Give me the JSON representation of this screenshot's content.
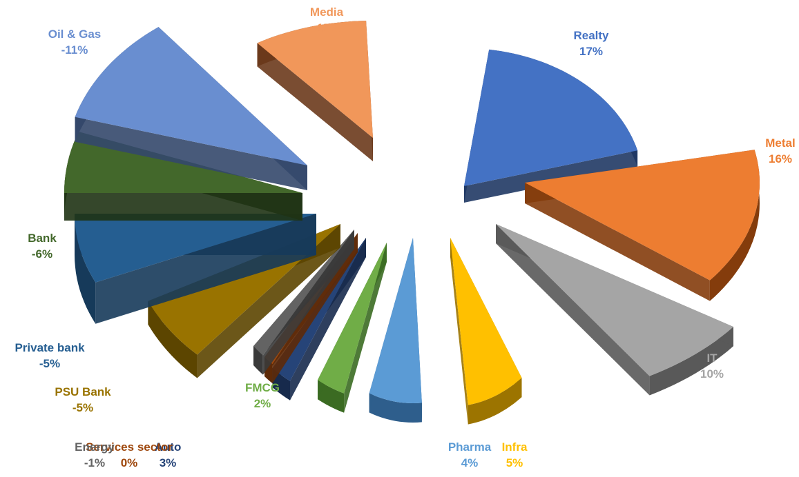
{
  "chart_data": {
    "type": "pie",
    "variant": "3d-exploded-pie",
    "title": "",
    "legend": "none",
    "slices": [
      {
        "category": "Realty",
        "label": "Realty",
        "value_text": "17%",
        "value": 17,
        "color": "#4472C4",
        "side": "#203864"
      },
      {
        "category": "Metal",
        "label": "Metal",
        "value_text": "16%",
        "value": 16,
        "color": "#ED7D31",
        "side": "#843C0C"
      },
      {
        "category": "IT",
        "label": "IT",
        "value_text": "10%",
        "value": 10,
        "color": "#A5A5A5",
        "side": "#595959"
      },
      {
        "category": "Infra",
        "label": "Infra",
        "value_text": "5%",
        "value": 5,
        "color": "#FFC000",
        "side": "#9C7400"
      },
      {
        "category": "Pharma",
        "label": "Pharma",
        "value_text": "4%",
        "value": 4,
        "color": "#5B9BD5",
        "side": "#2E5E8C"
      },
      {
        "category": "FMCG",
        "label": "FMCG",
        "value_text": "2%",
        "value": 2,
        "color": "#70AD47",
        "side": "#3B6B22"
      },
      {
        "category": "Auto",
        "label": "Auto",
        "value_text": "3%",
        "value": 3,
        "color": "#264478",
        "side": "#172A4C"
      },
      {
        "category": "Services sector",
        "label": "Services sector",
        "value_text": "0%",
        "value": 0,
        "color": "#9E480E",
        "side": "#5E2A08"
      },
      {
        "category": "Energy",
        "label": "Energy",
        "value_text": "-1%",
        "value": -1,
        "color": "#636363",
        "side": "#3A3A3A"
      },
      {
        "category": "PSU Bank",
        "label": "PSU Bank",
        "value_text": "-5%",
        "value": -5,
        "color": "#997300",
        "side": "#5C4500"
      },
      {
        "category": "Private bank",
        "label": "Private bank",
        "value_text": "-5%",
        "value": -5,
        "color": "#255E91",
        "side": "#163A5A"
      },
      {
        "category": "Bank",
        "label": "Bank",
        "value_text": "-6%",
        "value": -6,
        "color": "#43682B",
        "side": "#1F3314"
      },
      {
        "category": "Oil & Gas",
        "label": "Oil & Gas",
        "value_text": "-11%",
        "value": -11,
        "color": "#698ED0",
        "side": "#34486B"
      },
      {
        "category": "Media",
        "label": "Media",
        "value_text": "-15%",
        "value": -15,
        "color": "#F1975A",
        "side": "#6B3A1C"
      }
    ]
  }
}
